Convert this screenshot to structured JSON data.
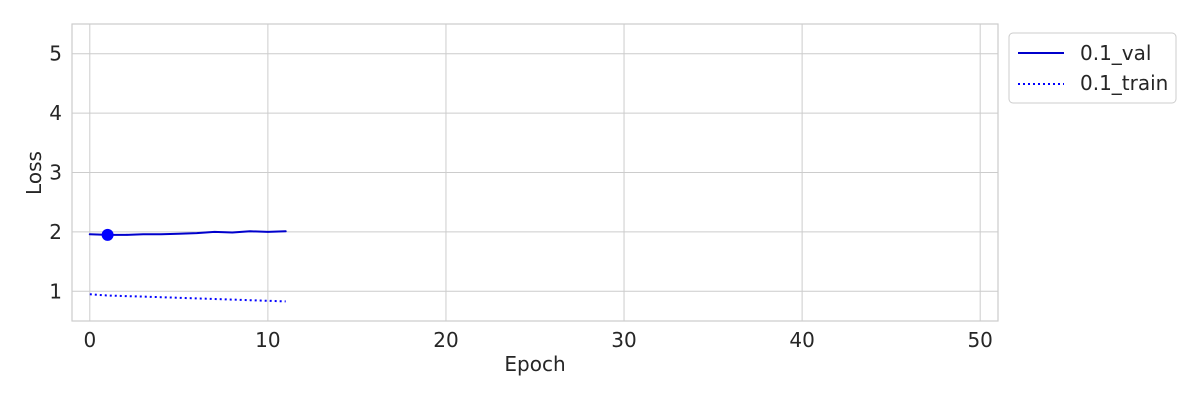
{
  "chart_data": {
    "type": "line",
    "title": "",
    "xlabel": "Epoch",
    "ylabel": "Loss",
    "xlim": [
      -1,
      51
    ],
    "ylim": [
      0.5,
      5.5
    ],
    "xticks": [
      0,
      10,
      20,
      30,
      40,
      50
    ],
    "yticks": [
      1,
      2,
      3,
      4,
      5
    ],
    "grid": true,
    "legend_position": "outside-top-right",
    "series": [
      {
        "name": "0.1_val",
        "color": "#0000cc",
        "style": "solid",
        "x": [
          0,
          1,
          2,
          3,
          4,
          5,
          6,
          7,
          8,
          9,
          10,
          11
        ],
        "y": [
          1.96,
          1.95,
          1.95,
          1.96,
          1.96,
          1.97,
          1.98,
          2.0,
          1.99,
          2.01,
          2.0,
          2.01
        ]
      },
      {
        "name": "0.1_train",
        "color": "#0000ff",
        "style": "dotted",
        "x": [
          0,
          1,
          2,
          3,
          4,
          5,
          6,
          7,
          8,
          9,
          10,
          11
        ],
        "y": [
          0.95,
          0.93,
          0.92,
          0.91,
          0.9,
          0.89,
          0.88,
          0.87,
          0.86,
          0.85,
          0.84,
          0.83
        ]
      }
    ],
    "markers": [
      {
        "series": "0.1_val",
        "x": 1,
        "y": 1.95,
        "color": "#0000ff"
      }
    ]
  }
}
